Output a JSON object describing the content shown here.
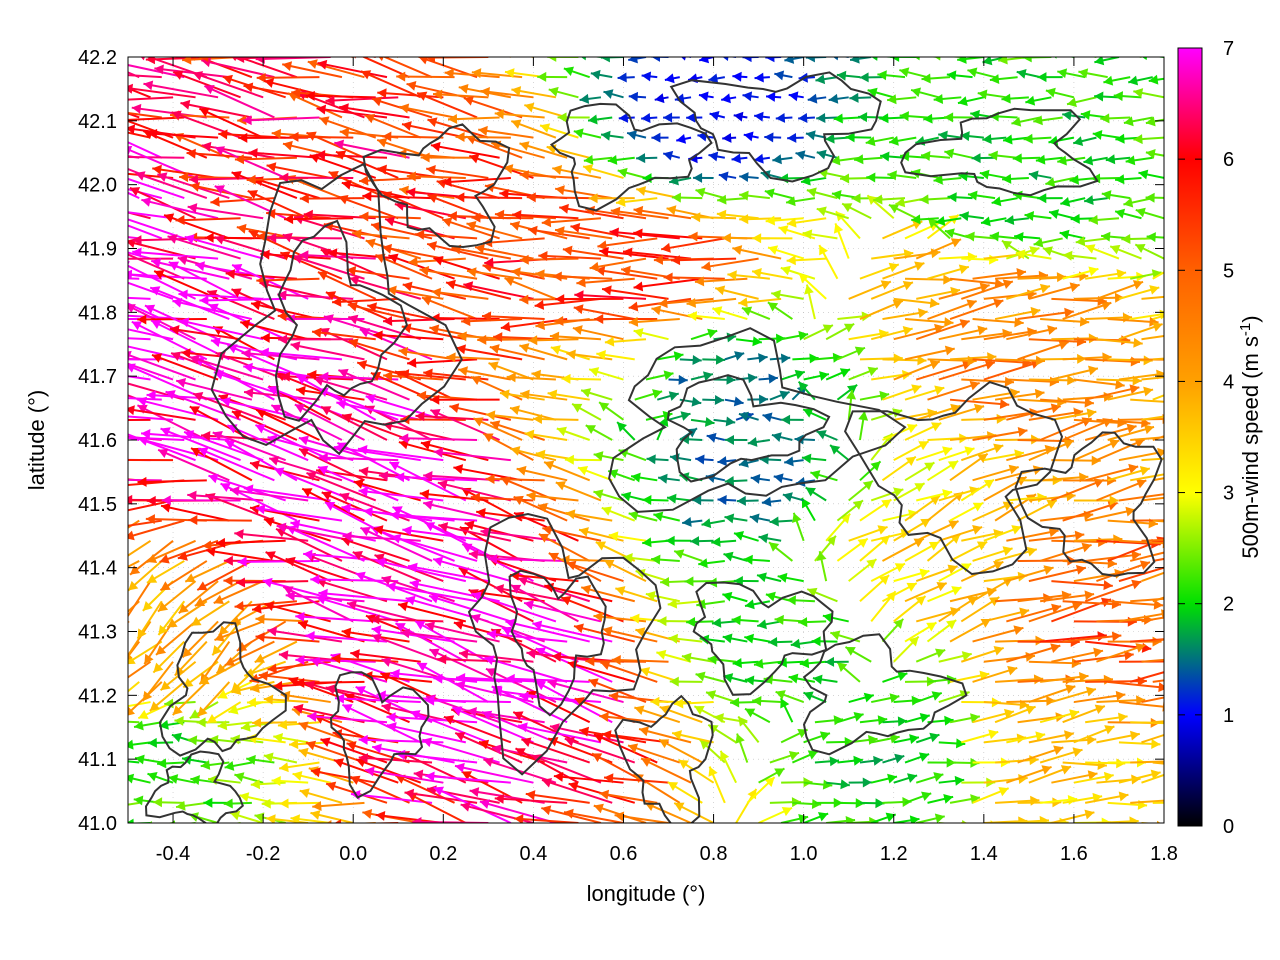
{
  "chart_data": {
    "type": "quiver",
    "xlabel": "longitude (°)",
    "ylabel": "latitude (°)",
    "colorbar_label_main": "500m-wind speed (m s",
    "colorbar_label_sup": "-1",
    "colorbar_label_end": ")",
    "xlim": [
      -0.5,
      1.8
    ],
    "ylim": [
      41.0,
      42.2
    ],
    "x_ticks": [
      {
        "value": -0.4,
        "label": "-0.4"
      },
      {
        "value": -0.2,
        "label": "-0.2"
      },
      {
        "value": 0.0,
        "label": "0.0"
      },
      {
        "value": 0.2,
        "label": "0.2"
      },
      {
        "value": 0.4,
        "label": "0.4"
      },
      {
        "value": 0.6,
        "label": "0.6"
      },
      {
        "value": 0.8,
        "label": "0.8"
      },
      {
        "value": 1.0,
        "label": "1.0"
      },
      {
        "value": 1.2,
        "label": "1.2"
      },
      {
        "value": 1.4,
        "label": "1.4"
      },
      {
        "value": 1.6,
        "label": "1.6"
      },
      {
        "value": 1.8,
        "label": "1.8"
      }
    ],
    "y_ticks": [
      {
        "value": 41.0,
        "label": "41.0"
      },
      {
        "value": 41.1,
        "label": "41.1"
      },
      {
        "value": 41.2,
        "label": "41.2"
      },
      {
        "value": 41.3,
        "label": "41.3"
      },
      {
        "value": 41.4,
        "label": "41.4"
      },
      {
        "value": 41.5,
        "label": "41.5"
      },
      {
        "value": 41.6,
        "label": "41.6"
      },
      {
        "value": 41.7,
        "label": "41.7"
      },
      {
        "value": 41.8,
        "label": "41.8"
      },
      {
        "value": 41.9,
        "label": "41.9"
      },
      {
        "value": 42.0,
        "label": "42.0"
      },
      {
        "value": 42.1,
        "label": "42.1"
      },
      {
        "value": 42.2,
        "label": "42.2"
      }
    ],
    "colorbar": {
      "range": [
        0,
        7
      ],
      "ticks": [
        {
          "value": 0,
          "label": "0"
        },
        {
          "value": 1,
          "label": "1"
        },
        {
          "value": 2,
          "label": "2"
        },
        {
          "value": 3,
          "label": "3"
        },
        {
          "value": 4,
          "label": "4"
        },
        {
          "value": 5,
          "label": "5"
        },
        {
          "value": 6,
          "label": "6"
        },
        {
          "value": 7,
          "label": "7"
        }
      ],
      "stops": [
        {
          "value": 0,
          "color": "#000000"
        },
        {
          "value": 1,
          "color": "#0000ff"
        },
        {
          "value": 2,
          "color": "#00e000"
        },
        {
          "value": 3,
          "color": "#ffff00"
        },
        {
          "value": 4,
          "color": "#ffa000"
        },
        {
          "value": 5,
          "color": "#ff6000"
        },
        {
          "value": 6,
          "color": "#ff0000"
        },
        {
          "value": 7,
          "color": "#ff00ff"
        }
      ]
    },
    "wind_field_samples": [
      {
        "lon": -0.4,
        "lat": 41.8,
        "u": -6.5,
        "v": 1.5,
        "speed": 7.0
      },
      {
        "lon": -0.1,
        "lat": 41.6,
        "u": -6.5,
        "v": 1.8,
        "speed": 7.0
      },
      {
        "lon": 0.2,
        "lat": 41.4,
        "u": -6.3,
        "v": 1.7,
        "speed": 7.0
      },
      {
        "lon": 0.4,
        "lat": 41.2,
        "u": -6.0,
        "v": 1.6,
        "speed": 7.0
      },
      {
        "lon": 0.0,
        "lat": 42.0,
        "u": -5.5,
        "v": 1.0,
        "speed": 5.8
      },
      {
        "lon": 0.3,
        "lat": 41.9,
        "u": -5.0,
        "v": 0.9,
        "speed": 5.5
      },
      {
        "lon": 0.7,
        "lat": 41.85,
        "u": -5.5,
        "v": 0.1,
        "speed": 5.5
      },
      {
        "lon": -0.4,
        "lat": 41.3,
        "u": -2.5,
        "v": -2.5,
        "speed": 4.0
      },
      {
        "lon": -0.4,
        "lat": 41.1,
        "u": -2.0,
        "v": 0.2,
        "speed": 2.2
      },
      {
        "lon": 0.8,
        "lat": 41.7,
        "u": 1.5,
        "v": 0.1,
        "speed": 1.5
      },
      {
        "lon": 0.9,
        "lat": 41.55,
        "u": -1.5,
        "v": 0.0,
        "speed": 1.5
      },
      {
        "lon": 0.8,
        "lat": 42.1,
        "u": -0.5,
        "v": 0.0,
        "speed": 1.0
      },
      {
        "lon": 1.5,
        "lat": 42.0,
        "u": -2.0,
        "v": 0.0,
        "speed": 2.0
      },
      {
        "lon": 1.4,
        "lat": 41.75,
        "u": 4.5,
        "v": 0.5,
        "speed": 4.5
      },
      {
        "lon": 1.6,
        "lat": 41.3,
        "u": 4.8,
        "v": 0.6,
        "speed": 5.0
      },
      {
        "lon": 1.5,
        "lat": 41.1,
        "u": 3.5,
        "v": 0.5,
        "speed": 3.5
      },
      {
        "lon": 1.2,
        "lat": 41.1,
        "u": 2.0,
        "v": 0.2,
        "speed": 2.0
      },
      {
        "lon": 1.2,
        "lat": 41.4,
        "u": 3.0,
        "v": 1.5,
        "speed": 3.5
      },
      {
        "lon": 1.0,
        "lat": 41.3,
        "u": -2.0,
        "v": 0.0,
        "speed": 2.0
      }
    ]
  }
}
